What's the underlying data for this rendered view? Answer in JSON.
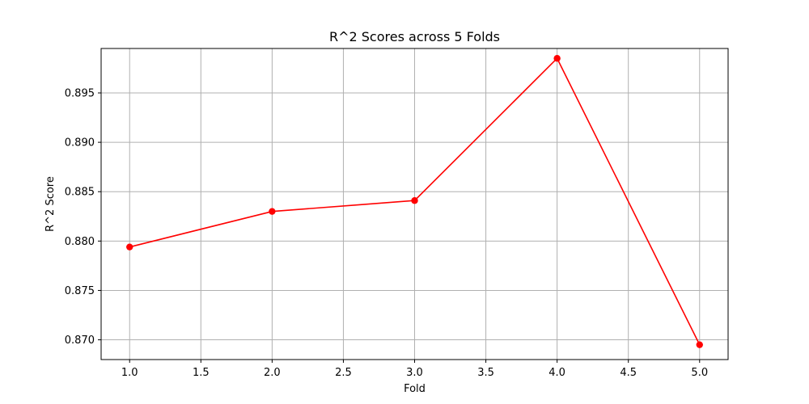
{
  "chart_data": {
    "type": "line",
    "title": "R^2 Scores across 5 Folds",
    "xlabel": "Fold",
    "ylabel": "R^2 Score",
    "x": [
      1,
      2,
      3,
      4,
      5
    ],
    "series": [
      {
        "values": [
          0.8794,
          0.883,
          0.8841,
          0.8985,
          0.8695
        ],
        "color": "#ff0000",
        "marker": "circle"
      }
    ],
    "xlim": [
      0.8,
      5.2
    ],
    "ylim": [
      0.868,
      0.8995
    ],
    "xticks": [
      1.0,
      1.5,
      2.0,
      2.5,
      3.0,
      3.5,
      4.0,
      4.5,
      5.0
    ],
    "xtick_labels": [
      "1.0",
      "1.5",
      "2.0",
      "2.5",
      "3.0",
      "3.5",
      "4.0",
      "4.5",
      "5.0"
    ],
    "yticks": [
      0.87,
      0.875,
      0.88,
      0.885,
      0.89,
      0.895
    ],
    "ytick_labels": [
      "0.870",
      "0.875",
      "0.880",
      "0.885",
      "0.890",
      "0.895"
    ],
    "grid": true
  }
}
